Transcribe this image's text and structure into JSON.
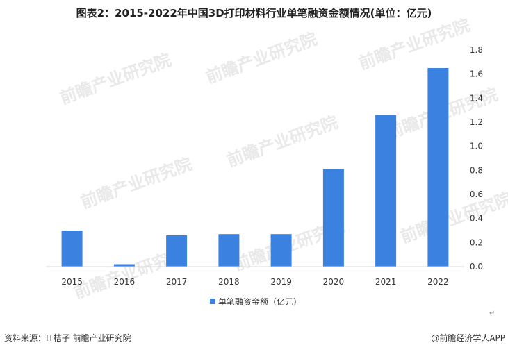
{
  "title": "图表2：2015-2022年中国3D打印材料行业单笔融资金额情况(单位：亿元)",
  "chart_data": {
    "type": "bar",
    "categories": [
      "2015",
      "2016",
      "2017",
      "2018",
      "2019",
      "2020",
      "2021",
      "2022"
    ],
    "series": [
      {
        "name": "单笔融资金额（亿元）",
        "values": [
          0.3,
          0.02,
          0.26,
          0.27,
          0.27,
          0.81,
          1.26,
          1.65
        ]
      }
    ],
    "ylim": [
      0,
      1.8
    ],
    "yticks": [
      "0.0",
      "0.2",
      "0.4",
      "0.6",
      "0.8",
      "1.0",
      "1.2",
      "1.4",
      "1.6",
      "1.8"
    ],
    "y_axis_position": "right",
    "grid": false,
    "legend_position": "bottom-center",
    "bar_color": "#3b82e0"
  },
  "footer": {
    "source": "资料来源：IT桔子 前瞻产业研究院",
    "brand": "@前瞻经济学人APP"
  },
  "watermark_text": "前瞻产业研究院",
  "corner_mark": "↵"
}
